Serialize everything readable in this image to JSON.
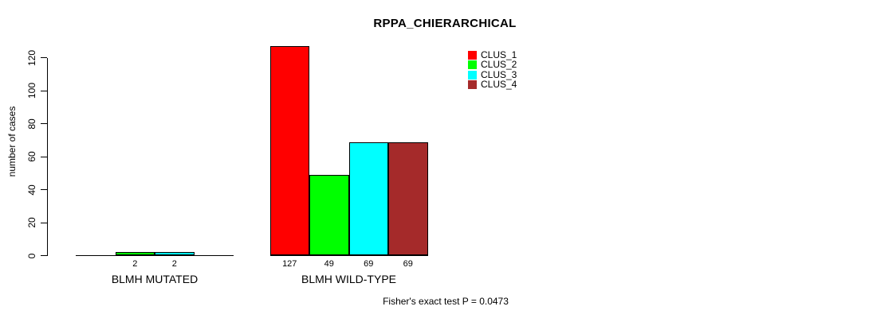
{
  "chart": {
    "title": "RPPA_CHIERARCHICAL",
    "ylabel": "number of cases",
    "footnote": "Fisher's exact test P = 0.0473"
  },
  "chart_data": {
    "type": "bar",
    "title": "RPPA_CHIERARCHICAL",
    "xlabel": "",
    "ylabel": "number of cases",
    "ylim": [
      0,
      130
    ],
    "yticks": [
      0,
      20,
      40,
      60,
      80,
      100,
      120
    ],
    "grid": false,
    "legend_position": "top-right",
    "annotation": "Fisher's exact test P = 0.0473",
    "categories": [
      "BLMH MUTATED",
      "BLMH WILD-TYPE"
    ],
    "series": [
      {
        "name": "CLUS_1",
        "color": "#FF0000",
        "values": [
          0,
          127
        ]
      },
      {
        "name": "CLUS_2",
        "color": "#00FF00",
        "values": [
          2,
          49
        ]
      },
      {
        "name": "CLUS_3",
        "color": "#00FFFF",
        "values": [
          2,
          69
        ]
      },
      {
        "name": "CLUS_4",
        "color": "#A52A2A",
        "values": [
          0,
          69
        ]
      }
    ],
    "bar_value_labels": [
      [
        "",
        "127"
      ],
      [
        "2",
        "49"
      ],
      [
        "2",
        "69"
      ],
      [
        "",
        "69"
      ]
    ]
  }
}
